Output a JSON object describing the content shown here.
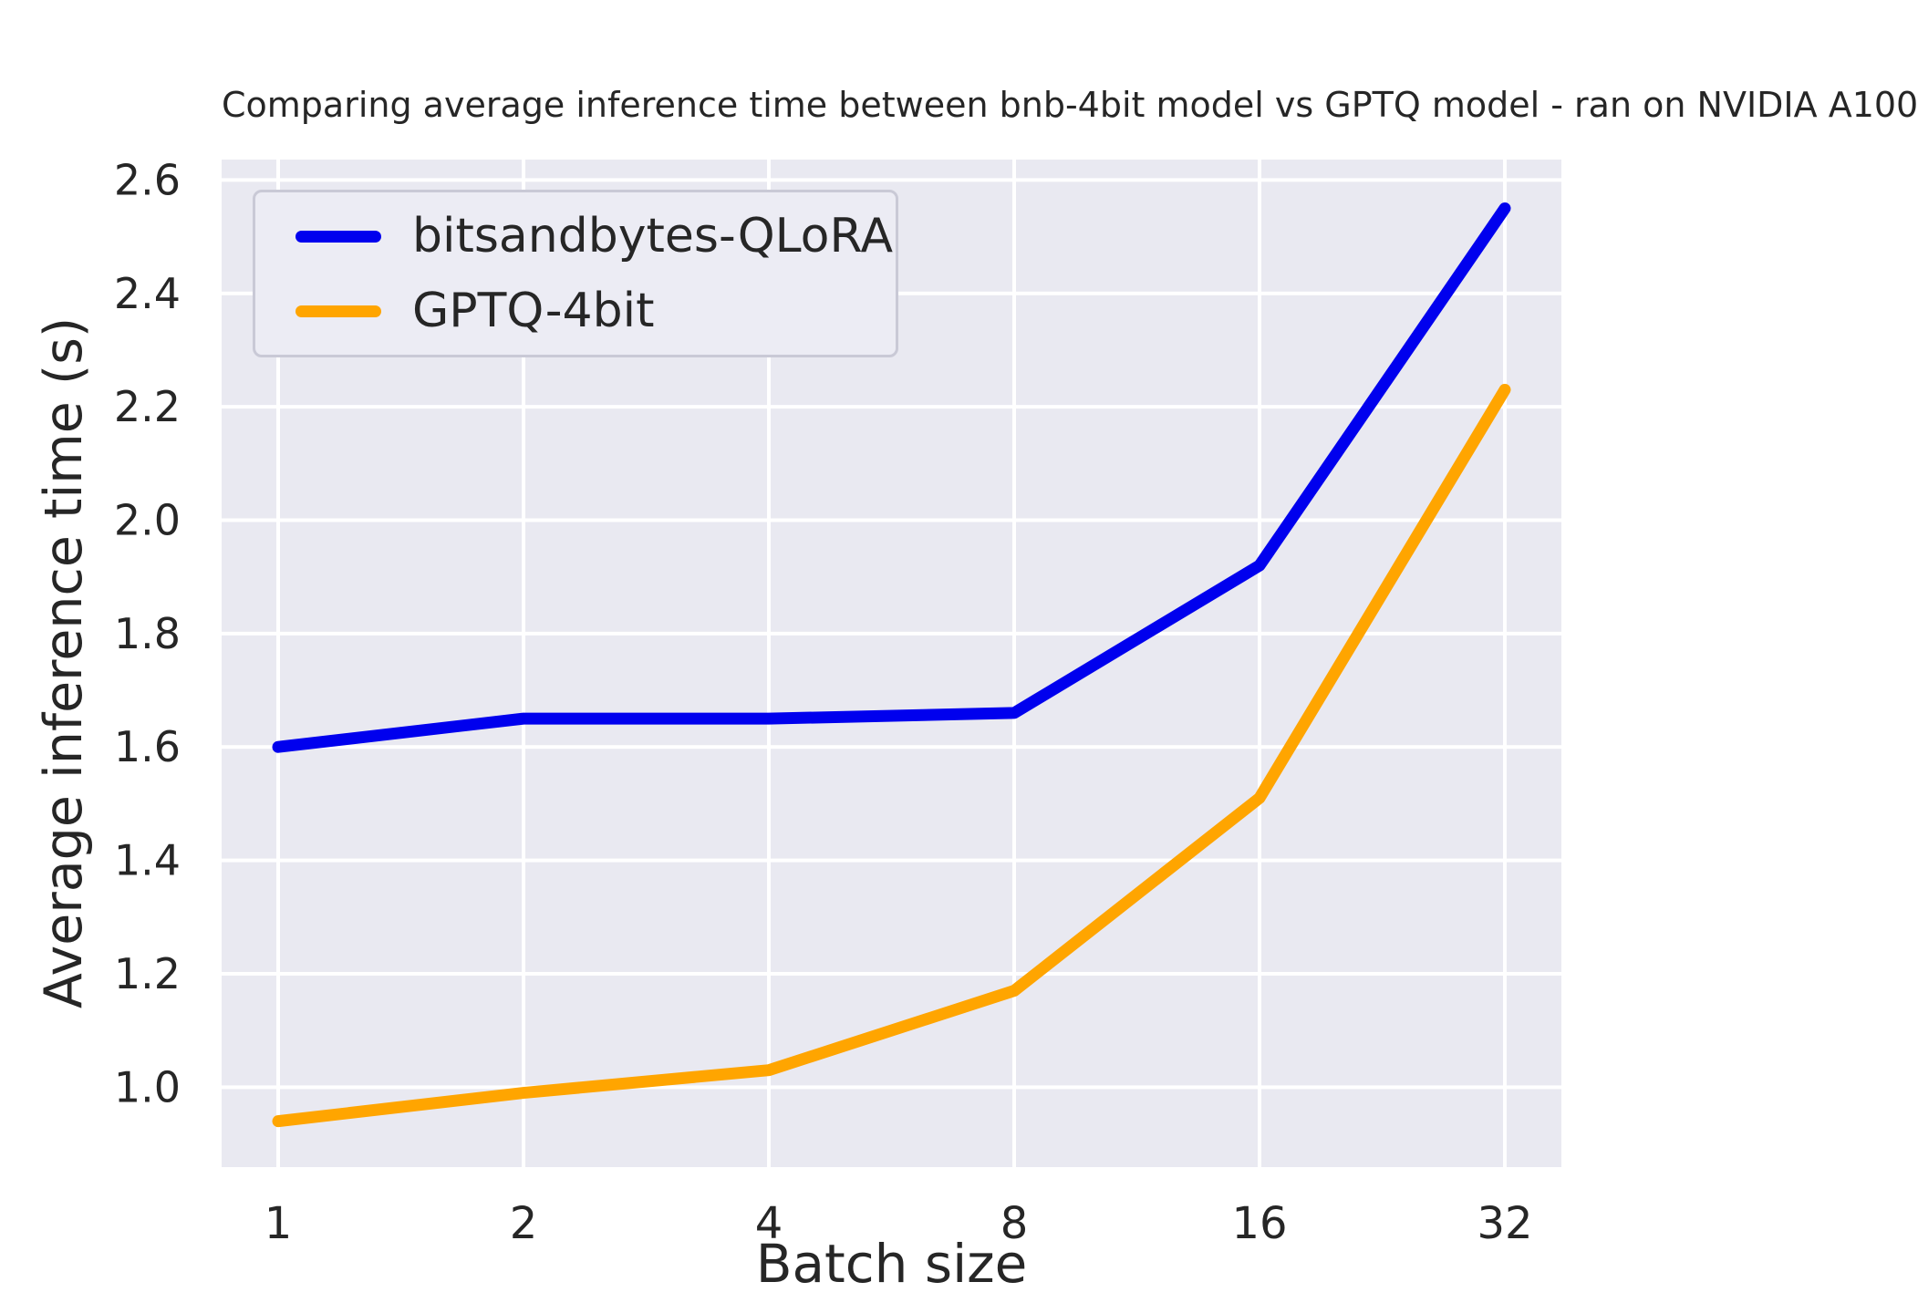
{
  "chart_data": {
    "type": "line",
    "title": "Comparing average inference time between bnb-4bit model vs GPTQ model - ran on NVIDIA A100",
    "xlabel": "Batch size",
    "ylabel": "Average inference time (s)",
    "x": [
      1,
      2,
      4,
      8,
      16,
      32
    ],
    "x_scale": "log2",
    "xtick_labels": [
      "1",
      "2",
      "4",
      "8",
      "16",
      "32"
    ],
    "yticks": [
      1.0,
      1.2,
      1.4,
      1.6,
      1.8,
      2.0,
      2.2,
      2.4,
      2.6
    ],
    "ytick_labels": [
      "1.0",
      "1.2",
      "1.4",
      "1.6",
      "1.8",
      "2.0",
      "2.2",
      "2.4",
      "2.6"
    ],
    "ylim": [
      0.859,
      2.636
    ],
    "grid": true,
    "legend_position": "upper left",
    "series": [
      {
        "name": "bitsandbytes-QLoRA",
        "color": "#0000EE",
        "values": [
          1.6,
          1.65,
          1.65,
          1.66,
          1.92,
          2.55
        ]
      },
      {
        "name": "GPTQ-4bit",
        "color": "#FFA500",
        "values": [
          0.94,
          0.99,
          1.03,
          1.17,
          1.51,
          2.23
        ]
      }
    ],
    "plot_bg": "#E9E9F1",
    "grid_color": "#FFFFFF",
    "text_color": "#262626"
  }
}
